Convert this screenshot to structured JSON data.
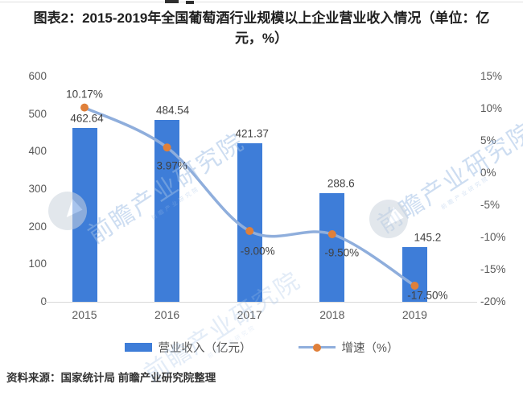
{
  "title": "图表2：2015-2019年全国葡萄酒行业规模以上企业营业收入情况（单位：亿元，%）",
  "source": "资料来源：国家统计局 前瞻产业研究院整理",
  "watermark": {
    "text": "前瞻产业研究院"
  },
  "chart_data": {
    "type": "bar",
    "subtype": "bar-line-combo",
    "categories": [
      "2015",
      "2016",
      "2017",
      "2018",
      "2019"
    ],
    "series": [
      {
        "name": "营业收入（亿元）",
        "type": "bar",
        "y_axis": "left",
        "values": [
          462.64,
          484.54,
          421.37,
          288.6,
          145.2
        ],
        "labels": [
          "462.64",
          "484.54",
          "421.37",
          "288.6",
          "145.2"
        ],
        "color": "#3E7DD8"
      },
      {
        "name": "增速（%）",
        "type": "line",
        "y_axis": "right",
        "values": [
          10.17,
          3.97,
          -9.0,
          -9.5,
          -17.5
        ],
        "labels": [
          "10.17%",
          "3.97%",
          "-9.00%",
          "-9.50%",
          "-17.50%"
        ],
        "color": "#8FAEDC",
        "marker_color": "#E0803A"
      }
    ],
    "left_axis": {
      "min": 0,
      "max": 600,
      "step": 100,
      "ticks": [
        "600",
        "500",
        "400",
        "300",
        "200",
        "100",
        "0"
      ]
    },
    "right_axis": {
      "min": -20,
      "max": 15,
      "step": 5,
      "ticks": [
        "15%",
        "10%",
        "5%",
        "0%",
        "-5%",
        "-10%",
        "-15%",
        "-20%"
      ]
    },
    "grid": false,
    "legend_position": "bottom"
  },
  "colors": {
    "bar": "#3E7DD8",
    "line": "#8FAEDC",
    "marker": "#E0803A",
    "axis_text": "#595959",
    "label_text": "#404040",
    "baseline": "#D9D9D9",
    "watermark": "#9DBDE5",
    "title_text": "#1F1F1F"
  }
}
